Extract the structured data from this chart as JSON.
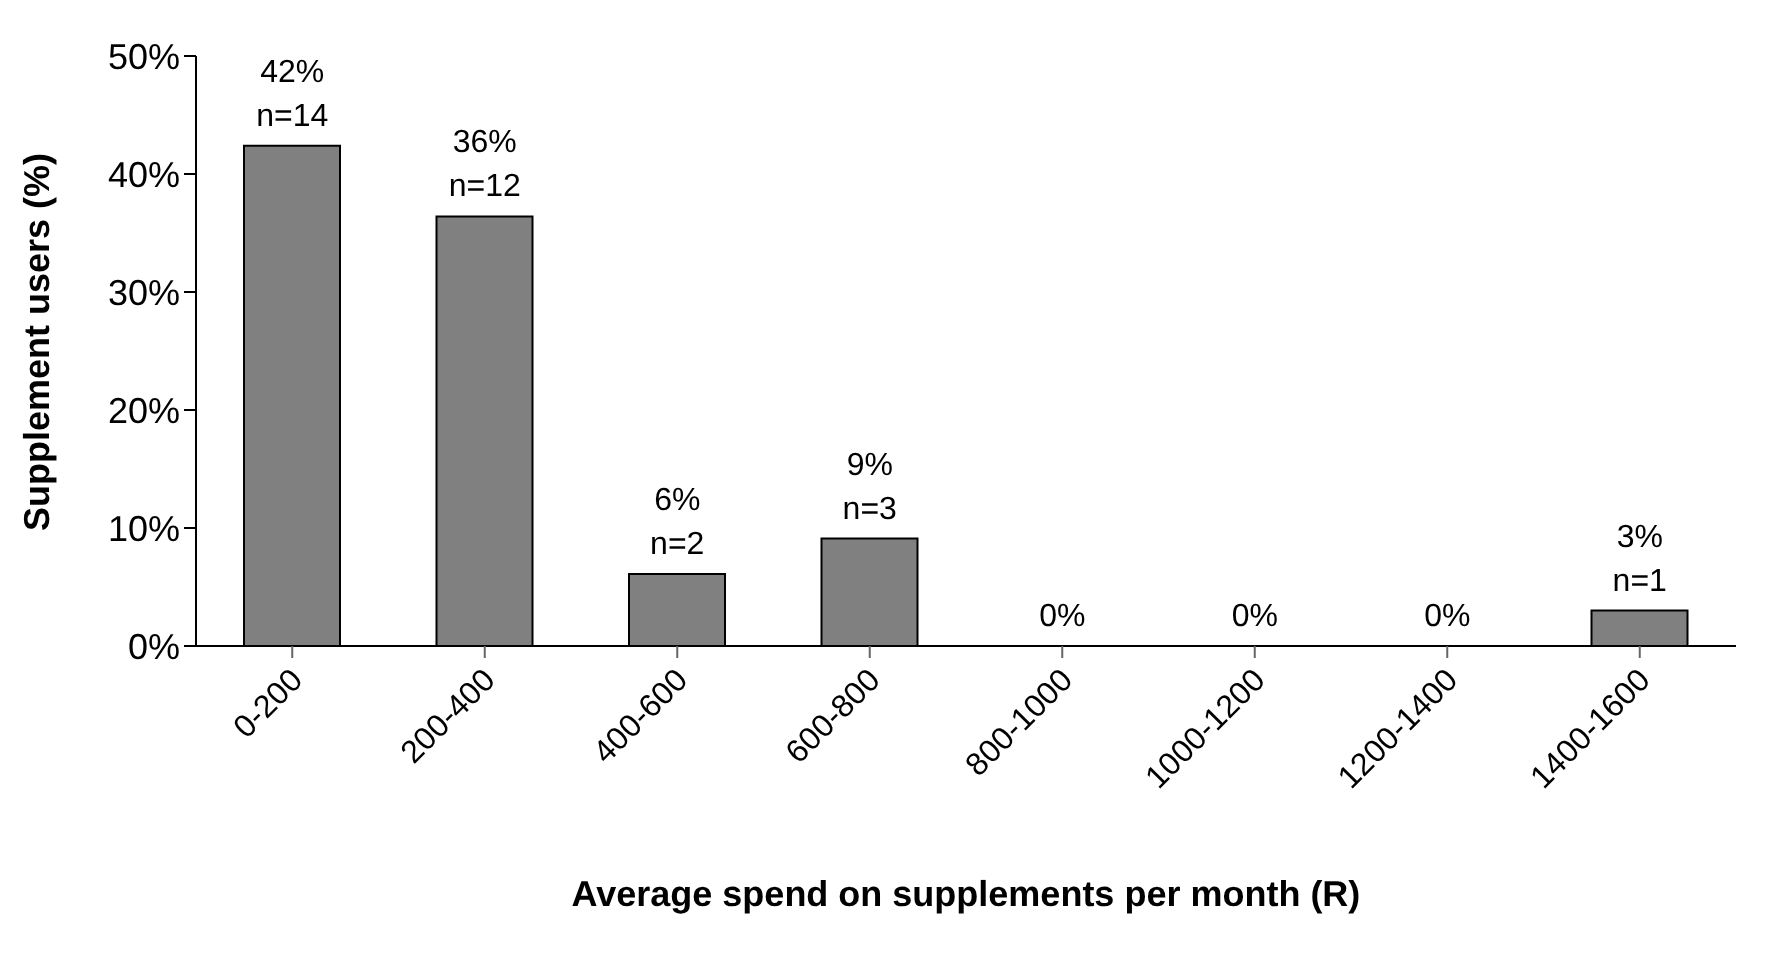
{
  "chart_data": {
    "type": "bar",
    "xlabel": "Average spend on supplements per month (R)",
    "ylabel": "Supplement users (%)",
    "categories": [
      "0-200",
      "200-400",
      "400-600",
      "600-800",
      "800-1000",
      "1000-1200",
      "1200-1400",
      "1400-1600"
    ],
    "values": [
      42.4,
      36.4,
      6.1,
      9.1,
      0,
      0,
      0,
      3.0
    ],
    "value_labels": [
      "42%\nn=14",
      "36%\nn=12",
      "6%\nn=2",
      "9%\nn=3",
      "0%",
      "0%",
      "0%",
      "3%\nn=1"
    ],
    "color": "#808080",
    "ylim": [
      0,
      50
    ],
    "yticks": [
      {
        "value": 0,
        "label": "0%"
      },
      {
        "value": 10,
        "label": "10%"
      },
      {
        "value": 20,
        "label": "20%"
      },
      {
        "value": 30,
        "label": "30%"
      },
      {
        "value": 40,
        "label": "40%"
      },
      {
        "value": 50,
        "label": "50%"
      }
    ],
    "grid": false,
    "legend": false
  }
}
